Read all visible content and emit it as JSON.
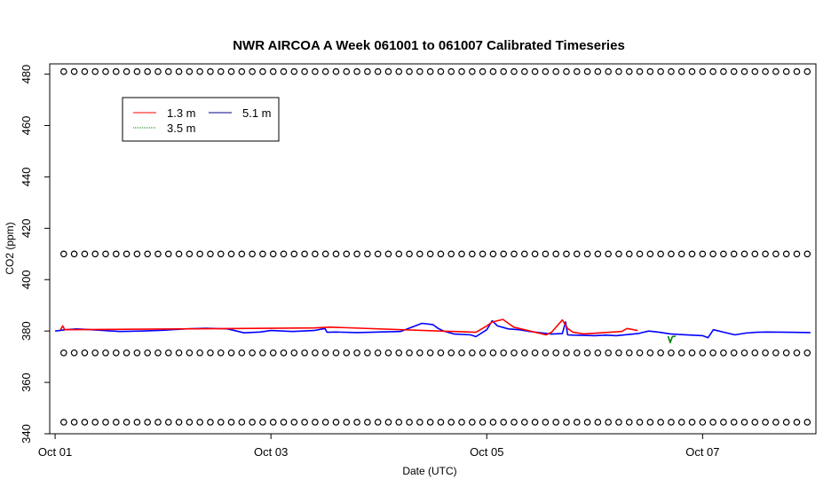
{
  "chart_data": {
    "type": "line",
    "title": "NWR AIRCOA A  Week 061001 to 061007  Calibrated Timeseries",
    "xlabel": "Date (UTC)",
    "ylabel": "CO2 (ppm)",
    "xlim_days": [
      -0.05,
      7.05
    ],
    "ylim": [
      340,
      484
    ],
    "xticks": [
      {
        "value": 0,
        "label": "Oct 01"
      },
      {
        "value": 2,
        "label": "Oct 03"
      },
      {
        "value": 4,
        "label": "Oct 05"
      },
      {
        "value": 6,
        "label": "Oct 07"
      }
    ],
    "yticks": [
      340,
      360,
      380,
      400,
      420,
      440,
      460,
      480
    ],
    "legend": {
      "position": "top-left",
      "entries": [
        {
          "label": "1.3 m",
          "color": "#ff0000"
        },
        {
          "label": "5.1 m",
          "color": "#00008b"
        },
        {
          "label": "3.5 m",
          "color": "#008000"
        }
      ]
    },
    "calibration_points": {
      "marker": "open-circle",
      "color": "#000000",
      "levels_ppm": [
        481,
        410,
        371.5,
        344.5
      ],
      "x_start_days": 0.08,
      "x_end_days": 6.97,
      "count_per_level": 72
    },
    "series": [
      {
        "name": "5.1 m",
        "color": "#0000ff",
        "x": [
          0,
          0.1,
          0.2,
          0.3,
          0.45,
          0.6,
          0.8,
          1.0,
          1.2,
          1.4,
          1.6,
          1.75,
          1.9,
          2.0,
          2.2,
          2.4,
          2.5,
          2.52,
          2.6,
          2.8,
          3.0,
          3.2,
          3.4,
          3.5,
          3.55,
          3.6,
          3.7,
          3.85,
          3.9,
          4.0,
          4.05,
          4.1,
          4.2,
          4.3,
          4.4,
          4.5,
          4.6,
          4.7,
          4.73,
          4.75,
          4.8,
          4.9,
          5.0,
          5.1,
          5.2,
          5.4,
          5.5,
          5.6,
          5.7,
          5.8,
          6.0,
          6.05,
          6.1,
          6.2,
          6.3,
          6.4,
          6.5,
          6.6,
          6.8,
          7.0
        ],
        "y": [
          380,
          380.5,
          380.8,
          380.6,
          380.2,
          379.8,
          380,
          380.3,
          380.8,
          381.1,
          380.8,
          379.3,
          379.6,
          380.2,
          379.8,
          380.2,
          381,
          379.5,
          379.6,
          379.4,
          379.6,
          379.8,
          383,
          382.5,
          381,
          380,
          378.8,
          378.5,
          377.8,
          380.5,
          384,
          382,
          380.8,
          380.5,
          379.8,
          379.3,
          378.8,
          379,
          383.5,
          378.5,
          378.4,
          378.3,
          378.2,
          378.4,
          378.2,
          379,
          380,
          379.5,
          378.9,
          378.6,
          378.2,
          377.4,
          380.5,
          379.5,
          378.5,
          379.2,
          379.5,
          379.6,
          379.5,
          379.4
        ]
      },
      {
        "name": "1.3 m",
        "color": "#ff0000",
        "x": [
          0.05,
          0.07,
          0.09,
          2.4,
          2.55,
          3.9,
          4.0,
          4.05,
          4.15,
          4.2,
          4.25,
          4.55,
          4.6,
          4.7,
          4.75,
          4.8,
          4.9,
          5.25,
          5.3,
          5.4
        ],
        "y": [
          380.5,
          382,
          380.5,
          381.2,
          381.5,
          379.5,
          382,
          383.5,
          384.5,
          383,
          381.5,
          378.5,
          379.5,
          384.3,
          381,
          379.5,
          378.9,
          379.8,
          381,
          380.2
        ]
      },
      {
        "name": "3.5 m",
        "color": "#008000",
        "x": [
          5.68,
          5.7,
          5.72,
          5.75
        ],
        "y": [
          378,
          375.5,
          377.8,
          378
        ]
      }
    ]
  }
}
